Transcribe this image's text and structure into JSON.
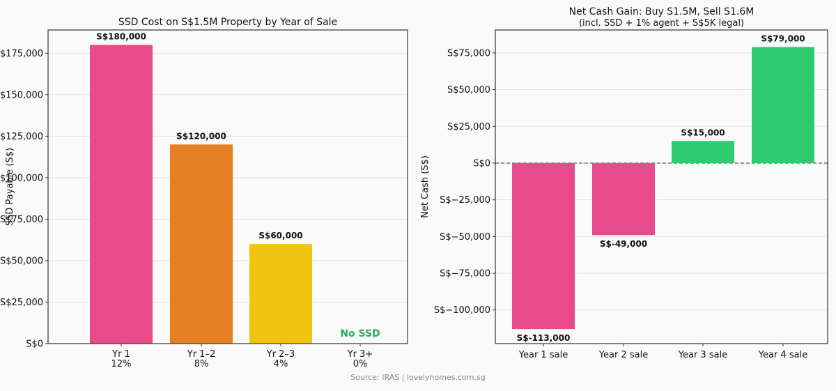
{
  "chart_data": [
    {
      "type": "bar",
      "title": "SSD Cost on S$1.5M Property by Year of Sale",
      "xlabel": "",
      "ylabel": "SSD Payable (S$)",
      "categories": [
        "Yr 1\n12%",
        "Yr 1–2\n8%",
        "Yr 2–3\n4%",
        "Yr 3+\n0%"
      ],
      "category_lines": [
        [
          "Yr 1",
          "12%"
        ],
        [
          "Yr 1–2",
          "8%"
        ],
        [
          "Yr 2–3",
          "4%"
        ],
        [
          "Yr 3+",
          "0%"
        ]
      ],
      "values": [
        180000,
        120000,
        60000,
        0
      ],
      "data_labels": [
        "S$180,000",
        "S$120,000",
        "S$60,000",
        "No SSD"
      ],
      "colors": [
        "#e84a8a",
        "#e67e22",
        "#f1c40f",
        "#2ecc71"
      ],
      "no_ssd_color": "#27ae60",
      "ylim": [
        0,
        189000
      ],
      "yticks": [
        0,
        25000,
        50000,
        75000,
        100000,
        125000,
        150000,
        175000
      ],
      "ytick_labels": [
        "S$0",
        "S$25,000",
        "S$50,000",
        "S$75,000",
        "S$100,000",
        "S$125,000",
        "S$150,000",
        "S$175,000"
      ],
      "grid": "y"
    },
    {
      "type": "bar",
      "title": "Net Cash Gain: Buy S1.5M, Sell S1.6M",
      "subtitle": "(incl. SSD + 1% agent + S$5K legal)",
      "xlabel": "",
      "ylabel": "Net Cash (S$)",
      "categories": [
        "Year 1 sale",
        "Year 2 sale",
        "Year 3 sale",
        "Year 4 sale"
      ],
      "values": [
        -113000,
        -49000,
        15000,
        79000
      ],
      "data_labels": [
        "S$-113,000",
        "S$-49,000",
        "S$15,000",
        "S$79,000"
      ],
      "colors": [
        "#e84a8a",
        "#e84a8a",
        "#2ecc71",
        "#2ecc71"
      ],
      "ylim": [
        -122900,
        90600
      ],
      "yticks": [
        -100000,
        -75000,
        -50000,
        -25000,
        0,
        25000,
        50000,
        75000
      ],
      "ytick_labels": [
        "S$−100,000",
        "S$−75,000",
        "S$−50,000",
        "S$−25,000",
        "S$0",
        "S$25,000",
        "S$50,000",
        "S$75,000"
      ],
      "zero_line": "dashed",
      "grid": "y"
    }
  ],
  "source": "Source: IRAS | lovelyhomes.com.sg"
}
